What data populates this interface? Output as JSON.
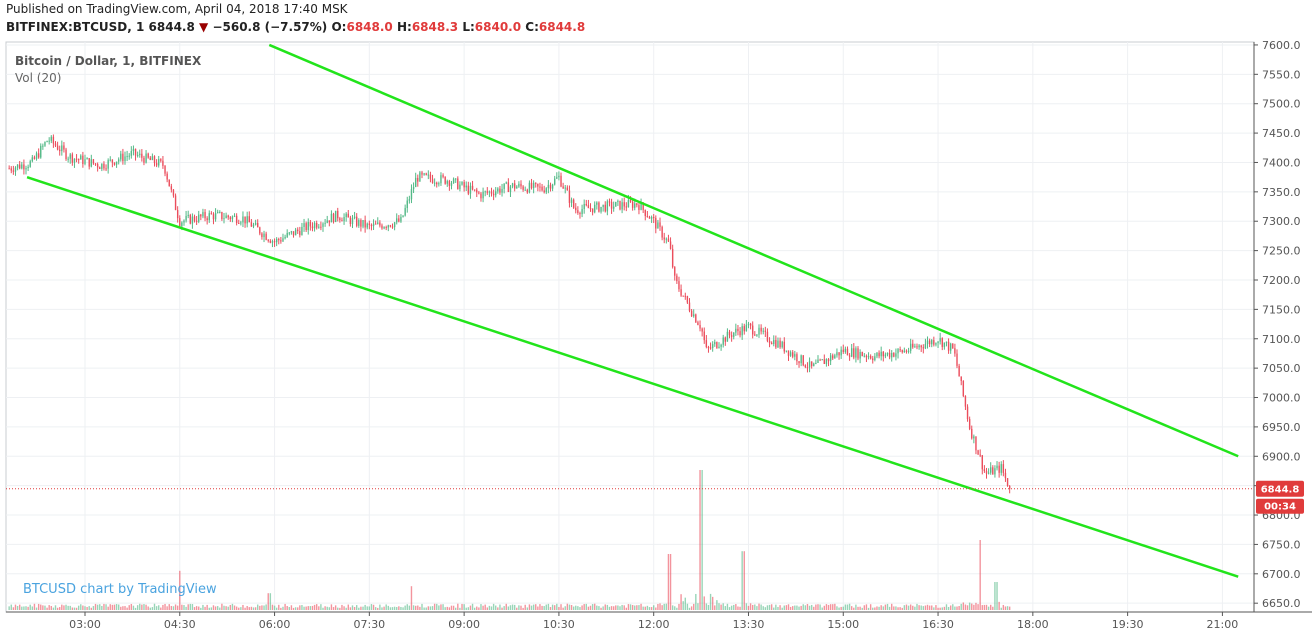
{
  "header": {
    "published": "Published on TradingView.com, April 04, 2018 17:40 MSK",
    "symbol": "BITFINEX:BTCUSD, 1",
    "last": "6844.8",
    "down_marker": "▼",
    "change": "−560.8 (−7.57%)",
    "o_label": "O:",
    "o_value": "6848.0",
    "h_label": "H:",
    "h_value": "6848.3",
    "l_label": "L:",
    "l_value": "6840.0",
    "c_label": "C:",
    "c_value": "6844.8"
  },
  "legend": {
    "title": "Bitcoin / Dollar, 1, BITFINEX",
    "volume": "Vol (20)"
  },
  "watermark": "BTCUSD chart by TradingView",
  "price_tag": {
    "price": "6844.8",
    "countdown": "00:34"
  },
  "colors": {
    "up": "#53b987",
    "down": "#eb4d5c",
    "trendline": "#22e41b",
    "price_line": "#e03b3b",
    "grid": "#eef0f3",
    "watermark": "#4aa3df"
  },
  "chart_data": {
    "type": "candlestick",
    "symbol": "BITFINEX:BTCUSD",
    "interval": "1",
    "x_ticks": [
      "03:00",
      "04:30",
      "06:00",
      "07:30",
      "09:00",
      "10:30",
      "12:00",
      "13:30",
      "15:00",
      "16:30",
      "18:00",
      "19:30",
      "21:00"
    ],
    "y_ticks": [
      6650,
      6700,
      6750,
      6800,
      6850,
      6900,
      6950,
      7000,
      7050,
      7100,
      7150,
      7200,
      7250,
      7300,
      7350,
      7400,
      7450,
      7500,
      7550,
      7600
    ],
    "ylim": [
      6635,
      7605
    ],
    "xlim": [
      "01:45",
      "21:30"
    ],
    "price_path": [
      {
        "t": "01:48",
        "p": 7390
      },
      {
        "t": "02:10",
        "p": 7400
      },
      {
        "t": "02:25",
        "p": 7440
      },
      {
        "t": "02:45",
        "p": 7410
      },
      {
        "t": "03:15",
        "p": 7395
      },
      {
        "t": "03:45",
        "p": 7415
      },
      {
        "t": "04:15",
        "p": 7395
      },
      {
        "t": "04:25",
        "p": 7330
      },
      {
        "t": "04:30",
        "p": 7300
      },
      {
        "t": "05:00",
        "p": 7310
      },
      {
        "t": "05:30",
        "p": 7305
      },
      {
        "t": "06:00",
        "p": 7265
      },
      {
        "t": "06:30",
        "p": 7290
      },
      {
        "t": "07:00",
        "p": 7310
      },
      {
        "t": "07:30",
        "p": 7290
      },
      {
        "t": "08:00",
        "p": 7300
      },
      {
        "t": "08:15",
        "p": 7375
      },
      {
        "t": "08:45",
        "p": 7370
      },
      {
        "t": "09:15",
        "p": 7345
      },
      {
        "t": "09:45",
        "p": 7360
      },
      {
        "t": "10:15",
        "p": 7355
      },
      {
        "t": "10:30",
        "p": 7375
      },
      {
        "t": "10:45",
        "p": 7320
      },
      {
        "t": "11:15",
        "p": 7325
      },
      {
        "t": "11:45",
        "p": 7330
      },
      {
        "t": "12:00",
        "p": 7300
      },
      {
        "t": "12:15",
        "p": 7260
      },
      {
        "t": "12:20",
        "p": 7200
      },
      {
        "t": "12:35",
        "p": 7150
      },
      {
        "t": "12:45",
        "p": 7120
      },
      {
        "t": "12:50",
        "p": 7080
      },
      {
        "t": "13:15",
        "p": 7110
      },
      {
        "t": "13:30",
        "p": 7120
      },
      {
        "t": "14:00",
        "p": 7090
      },
      {
        "t": "14:30",
        "p": 7050
      },
      {
        "t": "15:00",
        "p": 7080
      },
      {
        "t": "15:30",
        "p": 7070
      },
      {
        "t": "16:00",
        "p": 7080
      },
      {
        "t": "16:30",
        "p": 7100
      },
      {
        "t": "16:45",
        "p": 7080
      },
      {
        "t": "17:00",
        "p": 6950
      },
      {
        "t": "17:15",
        "p": 6870
      },
      {
        "t": "17:30",
        "p": 6880
      },
      {
        "t": "17:38",
        "p": 6844.8
      }
    ],
    "volume_spikes": [
      {
        "t": "04:30",
        "v": 0.28
      },
      {
        "t": "05:55",
        "v": 0.12
      },
      {
        "t": "08:10",
        "v": 0.17
      },
      {
        "t": "12:15",
        "v": 0.4
      },
      {
        "t": "12:45",
        "v": 1.0
      },
      {
        "t": "13:25",
        "v": 0.42
      },
      {
        "t": "17:10",
        "v": 0.5
      },
      {
        "t": "17:25",
        "v": 0.2
      }
    ],
    "trendlines": [
      {
        "name": "upper",
        "from": {
          "t": "05:55",
          "p": 7600
        },
        "to": {
          "t": "21:15",
          "p": 6900
        }
      },
      {
        "name": "lower",
        "from": {
          "t": "02:05",
          "p": 7375
        },
        "to": {
          "t": "21:15",
          "p": 6695
        }
      }
    ],
    "last_price": 6844.8
  }
}
